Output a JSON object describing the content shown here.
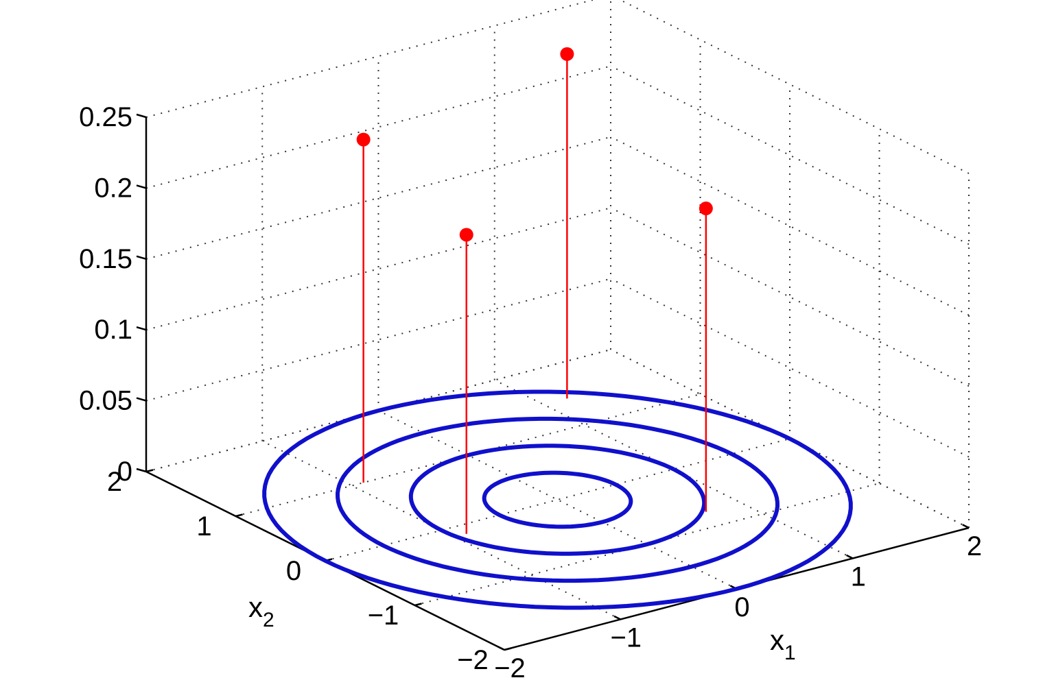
{
  "chart_data": {
    "type": "3d-stem-with-contour",
    "xlabel": "x",
    "xlabel_sub": "1",
    "ylabel": "x",
    "ylabel_sub": "2",
    "zlabel": "",
    "xlim": [
      -2,
      2
    ],
    "ylim": [
      -2,
      2
    ],
    "zlim": [
      0,
      0.25
    ],
    "x_ticks": [
      "−2",
      "−1",
      "0",
      "1",
      "2"
    ],
    "y_ticks": [
      "−2",
      "−1",
      "0",
      "1",
      "2"
    ],
    "z_ticks": [
      "0",
      "0.05",
      "0.1",
      "0.15",
      "0.2",
      "0.25"
    ],
    "grid": true,
    "stem_color": "#ff0000",
    "contour_color": "#1010cc",
    "stems": [
      {
        "x": -0.9,
        "y": 1.0,
        "z": 0.242
      },
      {
        "x": -0.9,
        "y": -0.15,
        "z": 0.211
      },
      {
        "x": 1.2,
        "y": 1.45,
        "z": 0.243
      },
      {
        "x": 0.7,
        "y": -0.75,
        "z": 0.214
      }
    ],
    "contour_levels": [
      {
        "radius": 0.5
      },
      {
        "radius": 1.0
      },
      {
        "radius": 1.5
      },
      {
        "radius": 2.0
      }
    ]
  }
}
